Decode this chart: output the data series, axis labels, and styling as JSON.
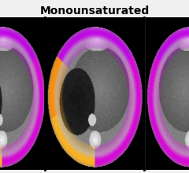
{
  "title": "Monounsaturated",
  "title_fontsize": 10,
  "title_fontweight": "bold",
  "figsize": [
    2.4,
    2.2
  ],
  "dpi": 100,
  "fig_bg": "#f0f0f0",
  "title_color": "black"
}
